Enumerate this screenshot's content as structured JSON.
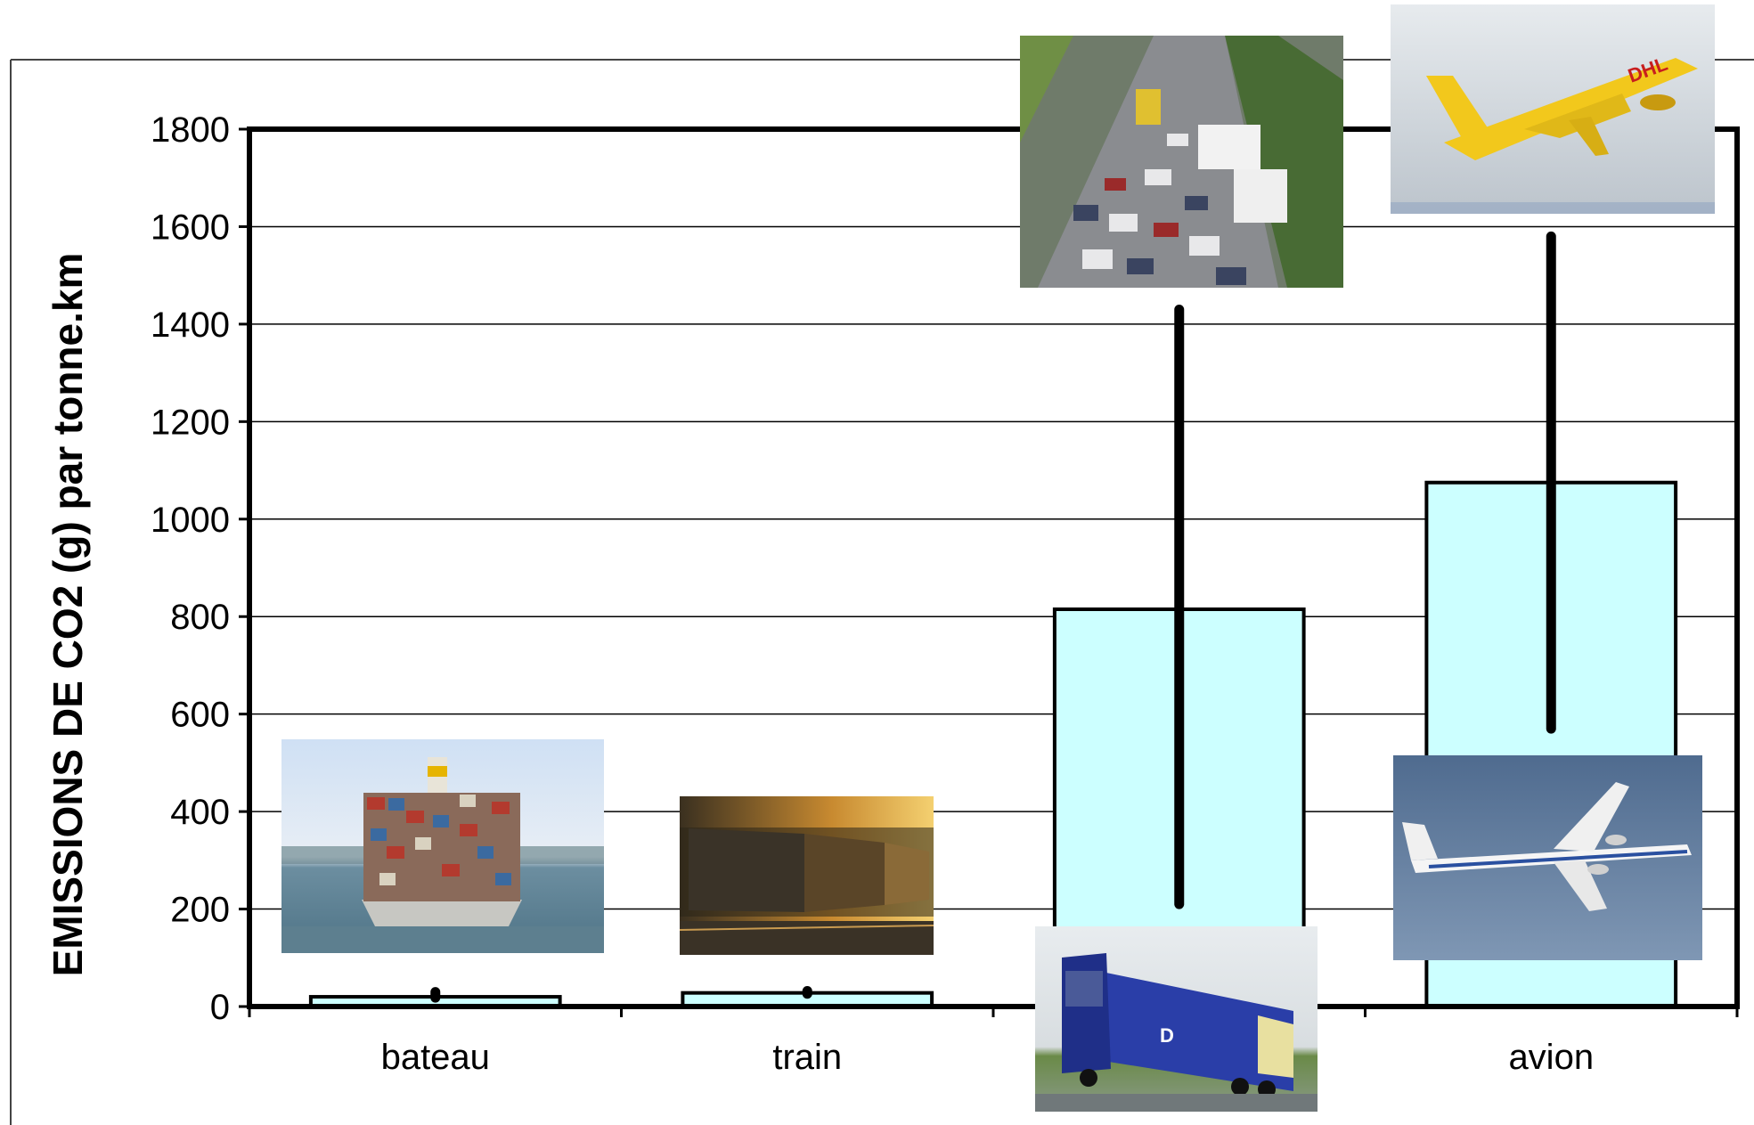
{
  "chart_data": {
    "type": "bar",
    "title": "",
    "xlabel": "",
    "ylabel": "EMISSIONS DE CO2 (g) par tonne.km",
    "categories": [
      "bateau",
      "train",
      "camion",
      "avion"
    ],
    "category_labels_shown": [
      "bateau",
      "train",
      "",
      "avion"
    ],
    "values": [
      20,
      28,
      815,
      1075
    ],
    "error_range": [
      [
        18,
        30
      ],
      [
        26,
        32
      ],
      [
        210,
        1430
      ],
      [
        570,
        1580
      ]
    ],
    "ylim": [
      0,
      1800
    ],
    "yticks": [
      "0",
      "200",
      "400",
      "600",
      "800",
      "1000",
      "1200",
      "1400",
      "1600",
      "1800"
    ],
    "grid": true,
    "legend": "none",
    "colors": {
      "bar_fill": "#ccffff",
      "bar_stroke": "#000000",
      "error_bar": "#000000",
      "grid": "#000000"
    },
    "pictures": [
      {
        "name": "container-ship-photo",
        "depicts": "container ship"
      },
      {
        "name": "freight-train-photo",
        "depicts": "freight train at sunset"
      },
      {
        "name": "traffic-jam-photo",
        "depicts": "highway traffic jam"
      },
      {
        "name": "truck-photo",
        "depicts": "blue semi truck"
      },
      {
        "name": "dhl-plane-photo",
        "depicts": "yellow cargo plane"
      },
      {
        "name": "antonov-plane-photo",
        "depicts": "large cargo plane"
      }
    ]
  }
}
